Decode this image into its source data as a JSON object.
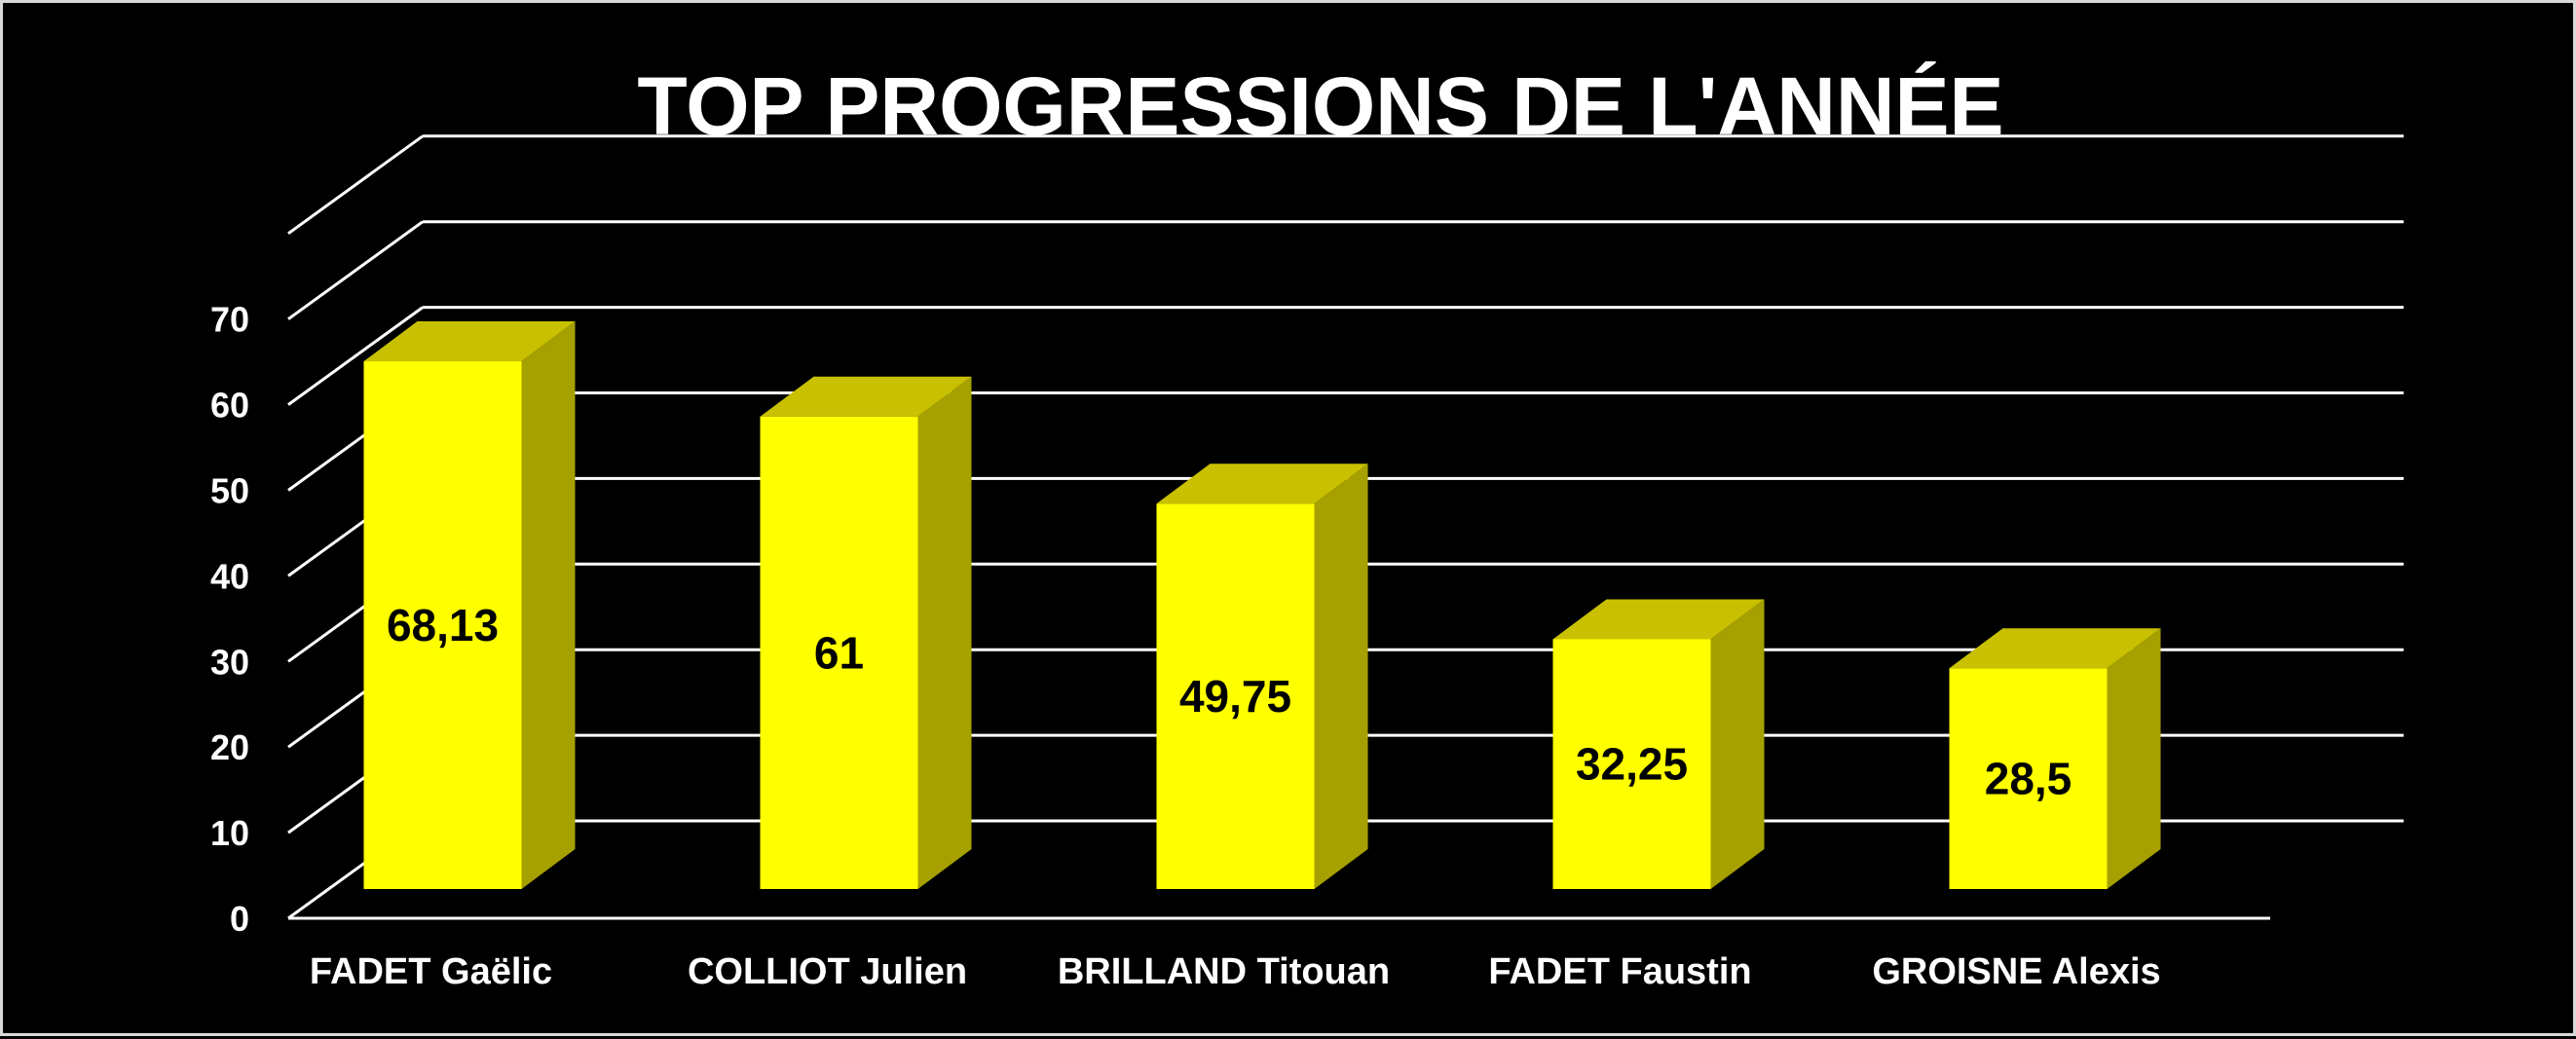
{
  "chart_data": {
    "type": "bar",
    "title": "TOP PROGRESSIONS DE L'ANNÉE",
    "categories": [
      "FADET Gaëlic",
      "COLLIOT Julien",
      "BRILLAND Titouan",
      "FADET Faustin",
      "GROISNE Alexis"
    ],
    "values": [
      68.13,
      61,
      49.75,
      32.25,
      28.5
    ],
    "data_labels": [
      "68,13",
      "61",
      "49,75",
      "32,25",
      "28,5"
    ],
    "y_ticks": [
      "0",
      "10",
      "20",
      "30",
      "40",
      "50",
      "60",
      "70"
    ],
    "ylim": [
      0,
      80
    ],
    "grid": true,
    "legend": "none",
    "style": "3d-column",
    "colors": {
      "background": "#000000",
      "bar_front": "#ffff00",
      "bar_top": "#c8c000",
      "bar_side": "#a6a000",
      "text": "#ffffff",
      "grid": "#ffffff",
      "frame": "#d9d9d9"
    }
  }
}
